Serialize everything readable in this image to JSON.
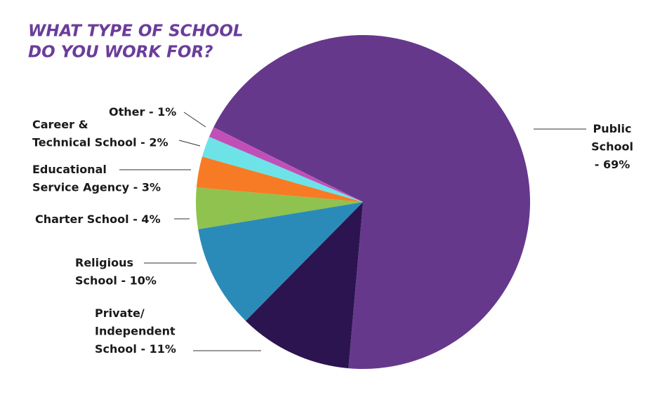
{
  "chart_data": {
    "type": "pie",
    "title": [
      "WHAT TYPE OF SCHOOL",
      "DO YOU WORK FOR?"
    ],
    "values": [
      69,
      11,
      10,
      4,
      3,
      2,
      1
    ],
    "value_labels": [
      [
        "Public",
        "School",
        "- 69%"
      ],
      [
        "Private/",
        "Independent",
        "School - 11%"
      ],
      [
        "Religious",
        "School - 10%"
      ],
      [
        "Charter School - 4%"
      ],
      [
        "Educational",
        "Service Agency - 3%"
      ],
      [
        "Career &",
        "Technical School - 2%"
      ],
      [
        "Other - 1%"
      ]
    ],
    "colors": [
      "#66388c",
      "#2c1450",
      "#2b8bb8",
      "#8fc24f",
      "#f77b24",
      "#6de3e8",
      "#c050b8"
    ]
  }
}
